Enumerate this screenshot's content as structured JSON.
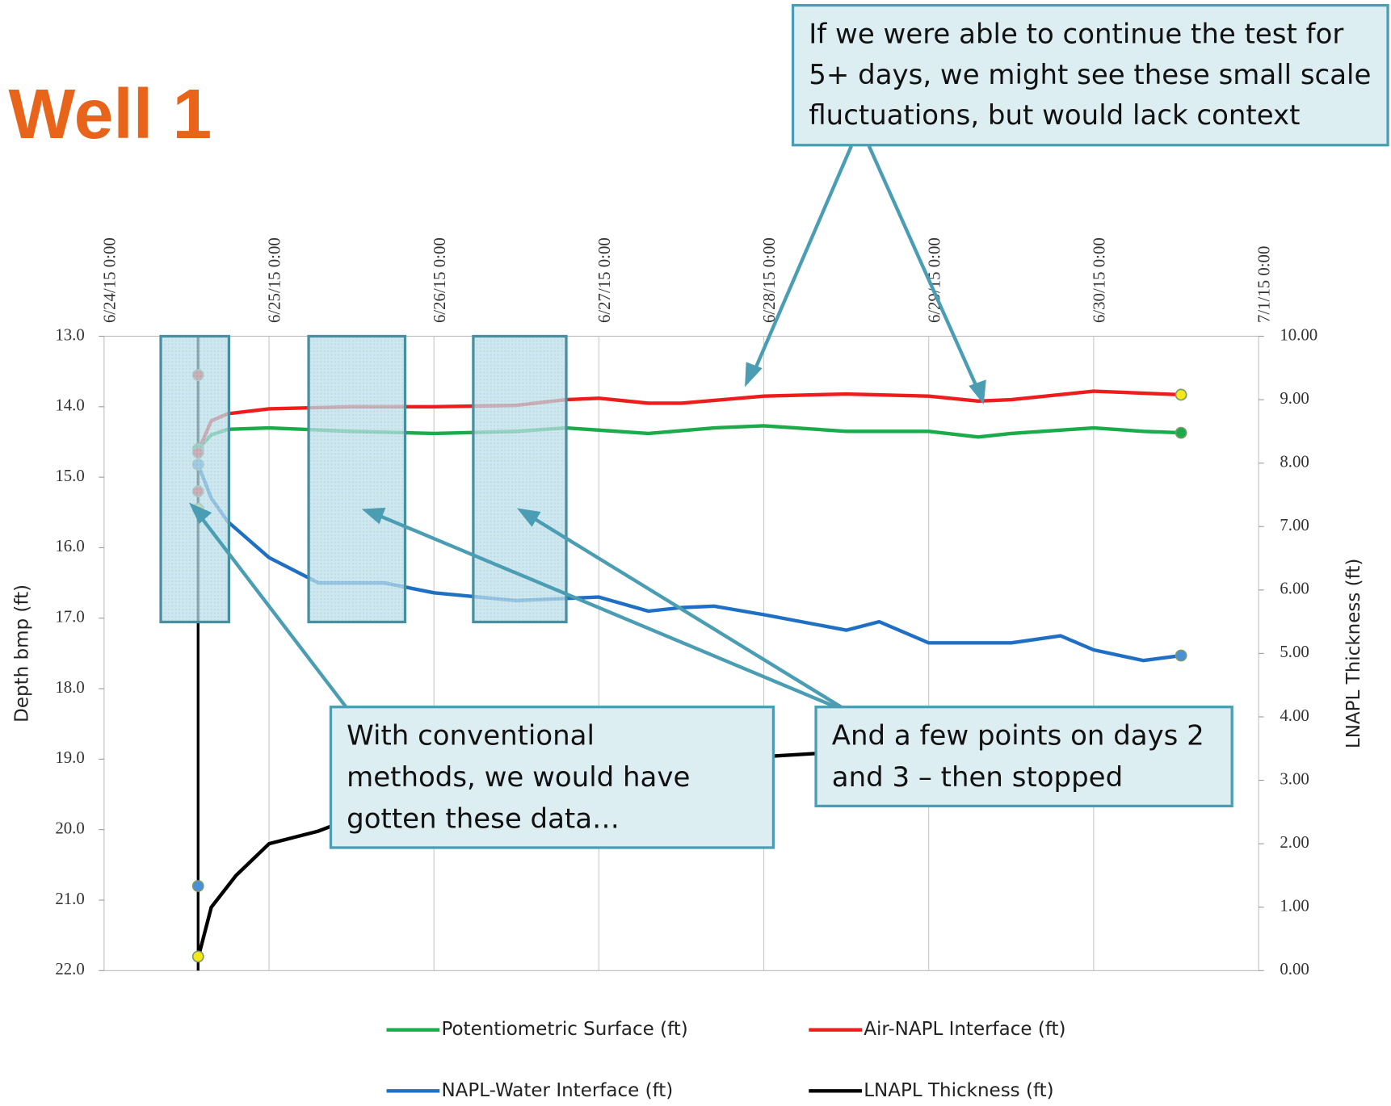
{
  "chart_data": {
    "type": "line",
    "title": "Well 1",
    "ylabel": "Depth bmp (ft)",
    "y2label": "LNAPL Thickness (ft)",
    "xlim": [
      0,
      7
    ],
    "xticks": [
      {
        "value": 0,
        "label": "6/24/15 0:00"
      },
      {
        "value": 1,
        "label": "6/25/15 0:00"
      },
      {
        "value": 2,
        "label": "6/26/15 0:00"
      },
      {
        "value": 3,
        "label": "6/27/15 0:00"
      },
      {
        "value": 4,
        "label": "6/28/15 0:00"
      },
      {
        "value": 5,
        "label": "6/29/15 0:00"
      },
      {
        "value": 6,
        "label": "6/30/15 0:00"
      },
      {
        "value": 7,
        "label": "7/1/15 0:00"
      }
    ],
    "ylim": [
      22,
      13
    ],
    "yticks": [
      {
        "value": 13,
        "label": "13.0"
      },
      {
        "value": 14,
        "label": "14.0"
      },
      {
        "value": 15,
        "label": "15.0"
      },
      {
        "value": 16,
        "label": "16.0"
      },
      {
        "value": 17,
        "label": "17.0"
      },
      {
        "value": 18,
        "label": "18.0"
      },
      {
        "value": 19,
        "label": "19.0"
      },
      {
        "value": 20,
        "label": "20.0"
      },
      {
        "value": 21,
        "label": "21.0"
      },
      {
        "value": 22,
        "label": "22.0"
      }
    ],
    "y2lim": [
      0,
      10
    ],
    "y2ticks": [
      {
        "value": 10,
        "label": "10.00"
      },
      {
        "value": 9,
        "label": "9.00"
      },
      {
        "value": 8,
        "label": "8.00"
      },
      {
        "value": 7,
        "label": "7.00"
      },
      {
        "value": 6,
        "label": "6.00"
      },
      {
        "value": 5,
        "label": "5.00"
      },
      {
        "value": 4,
        "label": "4.00"
      },
      {
        "value": 3,
        "label": "3.00"
      },
      {
        "value": 2,
        "label": "2.00"
      },
      {
        "value": 1,
        "label": "1.00"
      },
      {
        "value": 0,
        "label": "0.00"
      }
    ],
    "series": [
      {
        "name": "Potentiometric Surface (ft)",
        "color": "#1aab4a",
        "x": [
          0.57,
          0.65,
          0.75,
          1.0,
          1.5,
          2.0,
          2.5,
          2.8,
          3.3,
          3.7,
          4.0,
          4.5,
          5.0,
          5.3,
          5.5,
          6.0,
          6.3,
          6.53
        ],
        "values": [
          14.6,
          14.4,
          14.32,
          14.3,
          14.35,
          14.38,
          14.35,
          14.3,
          14.38,
          14.3,
          14.27,
          14.35,
          14.35,
          14.43,
          14.38,
          14.3,
          14.35,
          14.37
        ]
      },
      {
        "name": "Air-NAPL Interface (ft)",
        "color": "#ee1c1c",
        "x": [
          0.57,
          0.65,
          0.75,
          1.0,
          1.5,
          2.0,
          2.5,
          2.8,
          3.0,
          3.3,
          3.5,
          4.0,
          4.5,
          5.0,
          5.3,
          5.5,
          6.0,
          6.53
        ],
        "values": [
          14.63,
          14.2,
          14.1,
          14.03,
          14.0,
          14.0,
          13.98,
          13.9,
          13.88,
          13.95,
          13.95,
          13.85,
          13.82,
          13.85,
          13.92,
          13.9,
          13.78,
          13.83
        ]
      },
      {
        "name": "NAPL-Water Interface (ft)",
        "color": "#1f6fc5",
        "x": [
          0.57,
          0.65,
          0.75,
          1.0,
          1.3,
          1.7,
          2.0,
          2.5,
          3.0,
          3.3,
          3.5,
          3.7,
          4.0,
          4.5,
          4.7,
          5.0,
          5.5,
          5.8,
          6.0,
          6.3,
          6.53
        ],
        "values": [
          14.82,
          15.3,
          15.63,
          16.14,
          16.5,
          16.5,
          16.64,
          16.75,
          16.7,
          16.9,
          16.85,
          16.83,
          16.95,
          17.17,
          17.05,
          17.35,
          17.35,
          17.25,
          17.45,
          17.6,
          17.53
        ]
      },
      {
        "name": "LNAPL Thickness (ft)",
        "color": "#000000",
        "axis": "y2",
        "x": [
          0.57,
          0.65,
          0.8,
          1.0,
          1.3,
          1.5,
          1.7,
          2.0,
          2.5,
          3.0,
          3.5,
          3.85,
          4.5,
          5.0,
          5.5,
          6.0,
          6.53
        ],
        "values": [
          0.2,
          1.0,
          1.5,
          2.0,
          2.2,
          2.4,
          2.5,
          2.7,
          2.9,
          3.1,
          3.2,
          3.35,
          3.45,
          3.5,
          3.6,
          3.65,
          3.7
        ]
      }
    ],
    "markers": [
      {
        "x": 0.57,
        "y": 13.55,
        "color": "#ee1c1c"
      },
      {
        "x": 0.57,
        "y": 14.6,
        "color": "#1aab4a"
      },
      {
        "x": 0.57,
        "y": 14.65,
        "color": "#ee1c1c"
      },
      {
        "x": 0.57,
        "y": 14.82,
        "color": "#4a90d9"
      },
      {
        "x": 0.57,
        "y": 15.2,
        "color": "#ee1c1c"
      },
      {
        "x": 0.57,
        "y": 15.45,
        "color": "#b5d334"
      },
      {
        "x": 0.57,
        "y": 20.8,
        "color": "#4a90d9"
      },
      {
        "x": 0.57,
        "y": 21.8,
        "color": "#f5e81a"
      },
      {
        "x": 6.53,
        "y": 13.83,
        "color": "#f5e81a"
      },
      {
        "x": 6.53,
        "y": 14.37,
        "color": "#1aab4a"
      },
      {
        "x": 6.53,
        "y": 17.53,
        "color": "#4a90d9"
      }
    ],
    "annotations": [
      {
        "lines": [
          "If we were able to continue the test for",
          "5+ days, we might see these small scale",
          "fluctuations, but would lack context"
        ]
      },
      {
        "lines": [
          "With conventional",
          "methods, we would have",
          "gotten these data…"
        ]
      },
      {
        "lines": [
          "And a few points on days 2",
          "and 3 – then stopped"
        ]
      }
    ]
  }
}
